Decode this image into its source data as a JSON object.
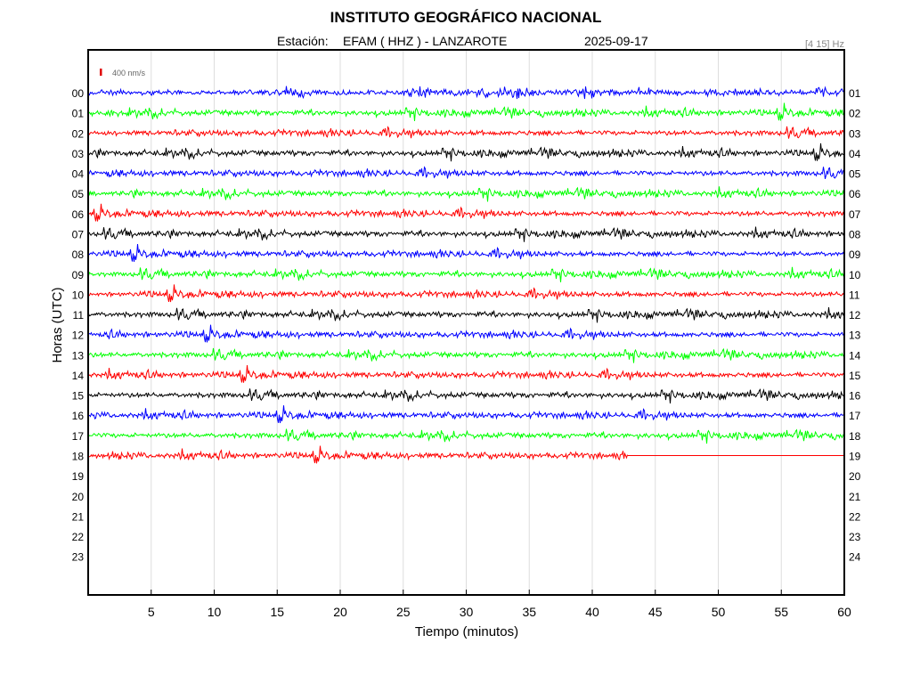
{
  "header": {
    "title": "INSTITUTO GEOGRÁFICO NACIONAL",
    "station_label": "Estación:",
    "station": "EFAM ( HHZ ) - LANZAROTE",
    "date": "2025-09-17",
    "band": "[4 15] Hz"
  },
  "scale": {
    "label": "400 nm/s",
    "color": "#e00000"
  },
  "chart_data": {
    "type": "line",
    "title": "INSTITUTO GEOGRÁFICO NACIONAL",
    "xlabel": "Tiempo (minutos)",
    "ylabel": "Horas (UTC)",
    "xlim": [
      0,
      60
    ],
    "x_ticks": [
      5,
      10,
      15,
      20,
      25,
      30,
      35,
      40,
      45,
      50,
      55,
      60
    ],
    "left_labels": [
      "00",
      "01",
      "02",
      "03",
      "04",
      "05",
      "06",
      "07",
      "08",
      "09",
      "10",
      "11",
      "12",
      "13",
      "14",
      "15",
      "16",
      "17",
      "18",
      "19",
      "20",
      "21",
      "22",
      "23"
    ],
    "right_labels": [
      "01",
      "02",
      "03",
      "04",
      "05",
      "06",
      "07",
      "08",
      "09",
      "10",
      "11",
      "12",
      "13",
      "14",
      "15",
      "16",
      "17",
      "18",
      "19",
      "20",
      "21",
      "22",
      "23",
      "24"
    ],
    "grid": true,
    "traces": [
      {
        "hour": "00",
        "color": "#0000ff",
        "end_minute": 60
      },
      {
        "hour": "01",
        "color": "#00ff00",
        "end_minute": 60
      },
      {
        "hour": "02",
        "color": "#ff0000",
        "end_minute": 60
      },
      {
        "hour": "03",
        "color": "#000000",
        "end_minute": 60
      },
      {
        "hour": "04",
        "color": "#0000ff",
        "end_minute": 60
      },
      {
        "hour": "05",
        "color": "#00ff00",
        "end_minute": 60
      },
      {
        "hour": "06",
        "color": "#ff0000",
        "end_minute": 60
      },
      {
        "hour": "07",
        "color": "#000000",
        "end_minute": 60
      },
      {
        "hour": "08",
        "color": "#0000ff",
        "end_minute": 60
      },
      {
        "hour": "09",
        "color": "#00ff00",
        "end_minute": 60
      },
      {
        "hour": "10",
        "color": "#ff0000",
        "end_minute": 60
      },
      {
        "hour": "11",
        "color": "#000000",
        "end_minute": 60
      },
      {
        "hour": "12",
        "color": "#0000ff",
        "end_minute": 60
      },
      {
        "hour": "13",
        "color": "#00ff00",
        "end_minute": 60
      },
      {
        "hour": "14",
        "color": "#ff0000",
        "end_minute": 60
      },
      {
        "hour": "15",
        "color": "#000000",
        "end_minute": 60
      },
      {
        "hour": "16",
        "color": "#0000ff",
        "end_minute": 60
      },
      {
        "hour": "17",
        "color": "#00ff00",
        "end_minute": 60
      },
      {
        "hour": "18",
        "color": "#ff0000",
        "end_minute": 42.8
      }
    ]
  }
}
